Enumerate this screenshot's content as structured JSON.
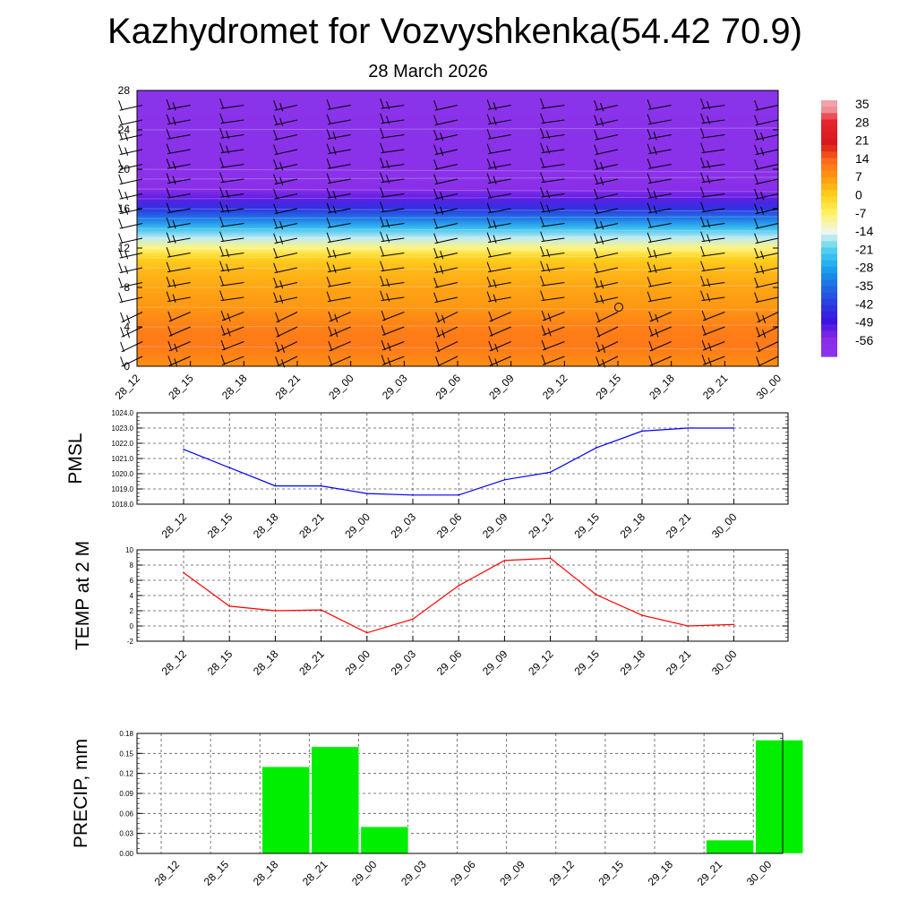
{
  "header": {
    "title": "Kazhydromet for Vozvyshkenka(54.42 70.9)",
    "subtitle": "28 March 2026"
  },
  "times": [
    "28_12",
    "28_15",
    "28_18",
    "28_21",
    "29_00",
    "29_03",
    "29_06",
    "29_09",
    "29_12",
    "29_15",
    "29_18",
    "29_21",
    "30_00"
  ],
  "colorbar": {
    "labels": [
      "35",
      "28",
      "21",
      "14",
      "7",
      "0",
      "-7",
      "-14",
      "-21",
      "-28",
      "-35",
      "-42",
      "-49",
      "-56"
    ],
    "stops": [
      {
        "v": 35,
        "color": "#f1a1a9"
      },
      {
        "v": 30,
        "color": "#e8252f"
      },
      {
        "v": 21,
        "color": "#d7191c"
      },
      {
        "v": 14,
        "color": "#ff6a1a"
      },
      {
        "v": 7,
        "color": "#ff9e12"
      },
      {
        "v": 0,
        "color": "#ffd21f"
      },
      {
        "v": -7,
        "color": "#fff46a"
      },
      {
        "v": -14,
        "color": "#eef5f0"
      },
      {
        "v": -21,
        "color": "#4fd1f0"
      },
      {
        "v": -28,
        "color": "#18a6ee"
      },
      {
        "v": -35,
        "color": "#1f6fe6"
      },
      {
        "v": -42,
        "color": "#2a3fe0"
      },
      {
        "v": -49,
        "color": "#3a14e0"
      },
      {
        "v": -56,
        "color": "#8a2be8"
      },
      {
        "v": -63,
        "color": "#8a35ea"
      }
    ]
  },
  "chart_data": [
    {
      "type": "heatmap",
      "name": "vertical-temperature-section",
      "x": [
        "28_12",
        "28_15",
        "28_18",
        "28_21",
        "29_00",
        "29_03",
        "29_06",
        "29_09",
        "29_12",
        "29_15",
        "29_18",
        "29_21",
        "30_00"
      ],
      "ylim": [
        0,
        28
      ],
      "yticks": [
        "0",
        "4",
        "8",
        "12",
        "16",
        "20",
        "24",
        "28"
      ],
      "levels": [
        0,
        2,
        4,
        6,
        8,
        10,
        11,
        12,
        13,
        14,
        15,
        16,
        17,
        18,
        19,
        20,
        24,
        28
      ],
      "temperature_by_level": [
        9,
        12,
        11,
        8,
        6,
        3,
        0,
        -8,
        -16,
        -24,
        -34,
        -44,
        -52,
        -58,
        -60,
        -60,
        -61,
        -62
      ],
      "wind_barbs": true
    },
    {
      "type": "line",
      "name": "pmsl",
      "ylabel": "PMSL",
      "x": [
        "28_12",
        "28_15",
        "28_18",
        "28_21",
        "29_00",
        "29_03",
        "29_06",
        "29_09",
        "29_12",
        "29_15",
        "29_18",
        "29_21",
        "30_00"
      ],
      "values": [
        1021.6,
        1020.4,
        1019.2,
        1019.2,
        1018.7,
        1018.6,
        1018.6,
        1019.6,
        1020.1,
        1021.7,
        1022.8,
        1023.0,
        1023.0
      ],
      "ylim": [
        1018.0,
        1024.0
      ],
      "yticks": [
        "1018.0",
        "1019.0",
        "1020.0",
        "1021.0",
        "1022.0",
        "1023.0",
        "1024.0"
      ],
      "color": "#0000ff"
    },
    {
      "type": "line",
      "name": "temp-2m",
      "ylabel": "TEMP at 2 M",
      "x": [
        "28_12",
        "28_15",
        "28_18",
        "28_21",
        "29_00",
        "29_03",
        "29_06",
        "29_09",
        "29_12",
        "29_15",
        "29_18",
        "29_21",
        "30_00"
      ],
      "values": [
        7.0,
        2.6,
        2.0,
        2.1,
        -0.9,
        0.9,
        5.3,
        8.6,
        8.9,
        4.1,
        1.4,
        0.0,
        0.2
      ],
      "ylim": [
        -2,
        10
      ],
      "yticks": [
        "-2",
        "0",
        "2",
        "4",
        "6",
        "8",
        "10"
      ],
      "color": "#ff0000"
    },
    {
      "type": "bar",
      "name": "precip",
      "ylabel": "PRECIP, mm",
      "categories": [
        "28_12",
        "28_15",
        "28_18",
        "28_21",
        "29_00",
        "29_03",
        "29_06",
        "29_09",
        "29_12",
        "29_15",
        "29_18",
        "29_21",
        "30_00"
      ],
      "values": [
        0,
        0,
        0.13,
        0.16,
        0.04,
        0,
        0,
        0,
        0,
        0,
        0,
        0.02,
        0.17
      ],
      "ylim": [
        0,
        0.18
      ],
      "yticks": [
        "0.00",
        "0.03",
        "0.06",
        "0.09",
        "0.12",
        "0.15",
        "0.18"
      ],
      "color": "#00ee00"
    }
  ]
}
